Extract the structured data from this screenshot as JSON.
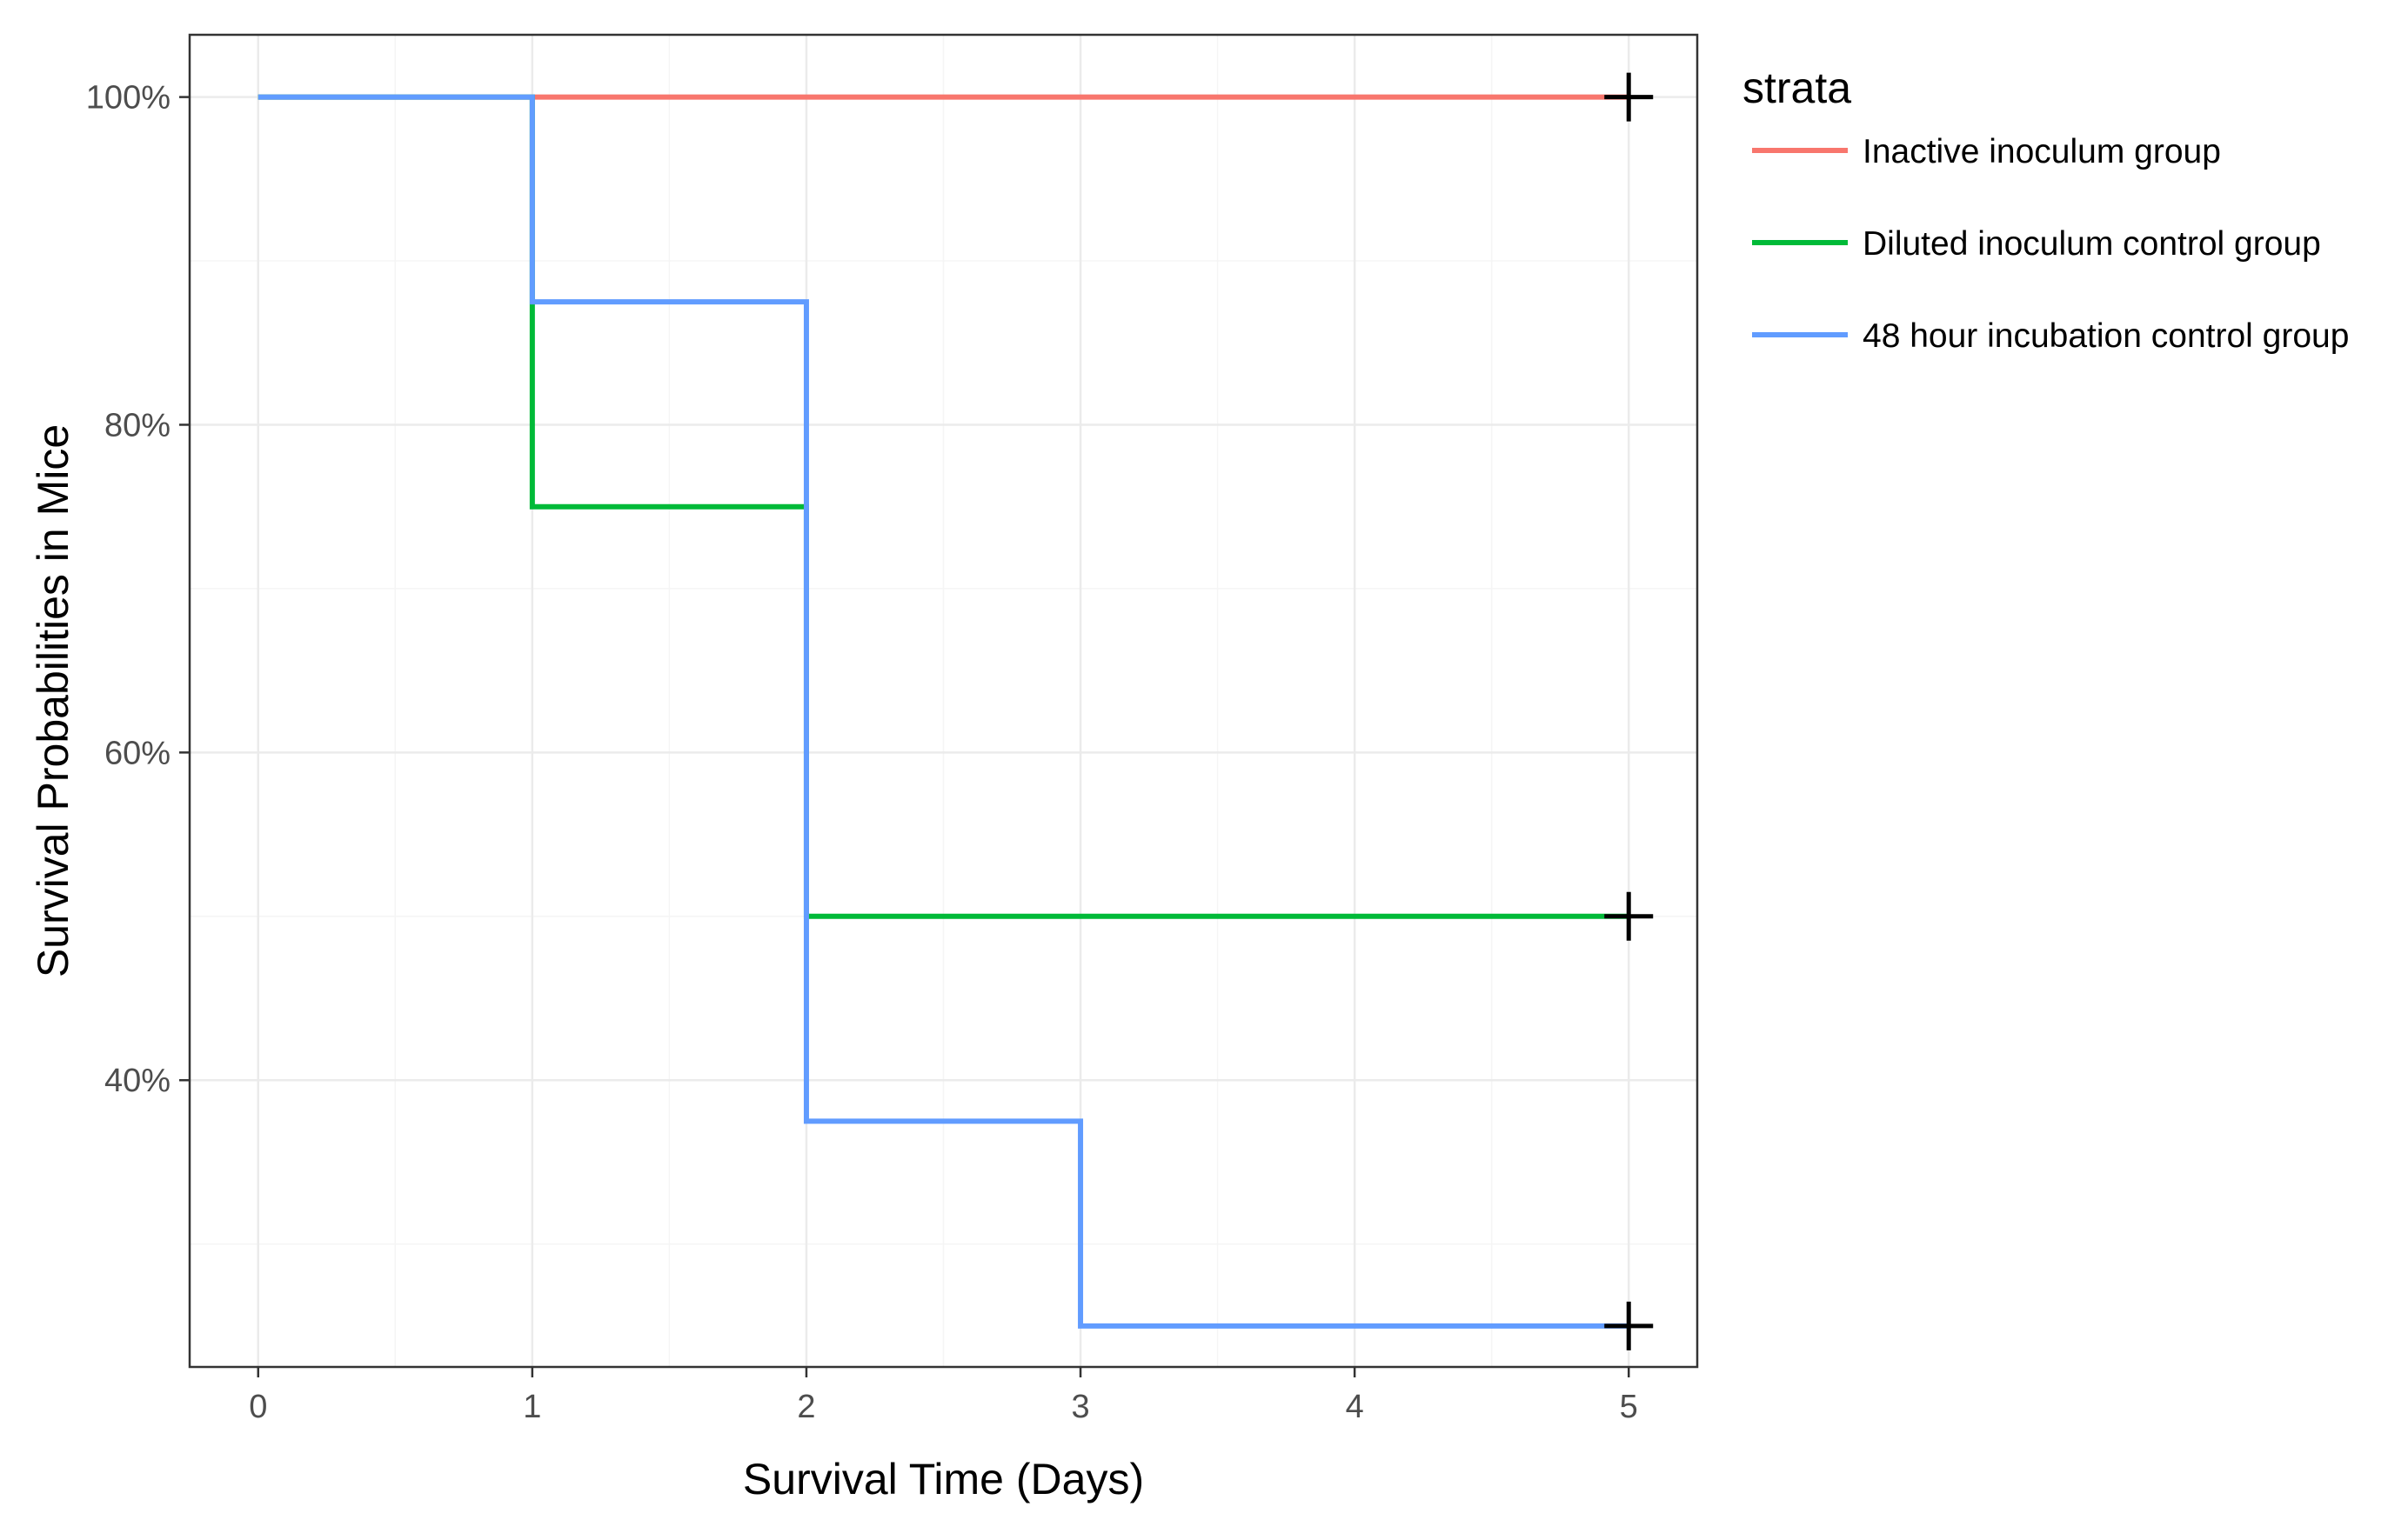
{
  "chart_data": {
    "type": "line",
    "subtype": "kaplan-meier step",
    "xlabel": "Survival Time (Days)",
    "ylabel": "Survival Probabilities in Mice",
    "xlim": [
      -0.25,
      5.25
    ],
    "ylim": [
      0.225,
      1.038
    ],
    "x_ticks": [
      0,
      1,
      2,
      3,
      4,
      5
    ],
    "x_tick_labels": [
      "0",
      "1",
      "2",
      "3",
      "4",
      "5"
    ],
    "y_ticks": [
      0.4,
      0.6,
      0.8,
      1.0
    ],
    "y_tick_labels": [
      "40%",
      "60%",
      "80%",
      "100%"
    ],
    "grid": true,
    "legend": {
      "title": "strata",
      "position": "right"
    },
    "censor_marker": "+",
    "series": [
      {
        "name": "Inactive inoculum group",
        "color": "#F8766D",
        "x": [
          0,
          5
        ],
        "y": [
          1.0,
          1.0
        ],
        "censor": [
          [
            5,
            1.0
          ]
        ]
      },
      {
        "name": "Diluted inoculum control group",
        "color": "#00BA38",
        "x": [
          0,
          1,
          2,
          5
        ],
        "y": [
          1.0,
          0.75,
          0.5,
          0.5
        ],
        "censor": [
          [
            5,
            0.5
          ]
        ]
      },
      {
        "name": "48 hour incubation control group",
        "color": "#619CFF",
        "x": [
          0,
          1,
          2,
          3,
          5
        ],
        "y": [
          1.0,
          0.875,
          0.375,
          0.25,
          0.25
        ],
        "censor": [
          [
            5,
            0.25
          ]
        ]
      }
    ]
  }
}
